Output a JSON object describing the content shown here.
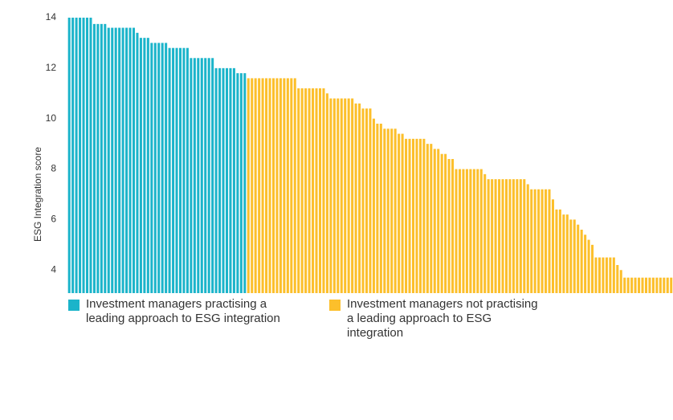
{
  "chart_data": {
    "type": "bar",
    "y_label": "ESG Integration score",
    "ylim": [
      0,
      14
    ],
    "yticks": [
      0,
      2,
      4,
      6,
      8,
      10,
      12,
      14
    ],
    "series": [
      {
        "name": "Investment managers practising a leading approach to ESG integration",
        "color": "#1bb4ca",
        "values": [
          14,
          14,
          14,
          14,
          14,
          14,
          14,
          13.75,
          13.75,
          13.75,
          13.75,
          13.6,
          13.6,
          13.6,
          13.6,
          13.6,
          13.6,
          13.6,
          13.6,
          13.4,
          13.2,
          13.2,
          13.2,
          13,
          13,
          13,
          13,
          13,
          12.8,
          12.8,
          12.8,
          12.8,
          12.8,
          12.8,
          12.4,
          12.4,
          12.4,
          12.4,
          12.4,
          12.4,
          12.4,
          12,
          12,
          12,
          12,
          12,
          12,
          11.8,
          11.8,
          11.8
        ]
      },
      {
        "name": "Investment managers not practising a leading approach to ESG integration",
        "color": "#fcbf2b",
        "values": [
          11.6,
          11.6,
          11.6,
          11.6,
          11.6,
          11.6,
          11.6,
          11.6,
          11.6,
          11.6,
          11.6,
          11.6,
          11.6,
          11.6,
          11.2,
          11.2,
          11.2,
          11.2,
          11.2,
          11.2,
          11.2,
          11.2,
          11,
          10.8,
          10.8,
          10.8,
          10.8,
          10.8,
          10.8,
          10.8,
          10.6,
          10.6,
          10.4,
          10.4,
          10.4,
          10,
          9.8,
          9.8,
          9.6,
          9.6,
          9.6,
          9.6,
          9.4,
          9.4,
          9.2,
          9.2,
          9.2,
          9.2,
          9.2,
          9.2,
          9,
          9,
          8.8,
          8.8,
          8.6,
          8.6,
          8.4,
          8.4,
          8,
          8,
          8,
          8,
          8,
          8,
          8,
          8,
          7.8,
          7.6,
          7.6,
          7.6,
          7.6,
          7.6,
          7.6,
          7.6,
          7.6,
          7.6,
          7.6,
          7.6,
          7.4,
          7.2,
          7.2,
          7.2,
          7.2,
          7.2,
          7.2,
          6.8,
          6.4,
          6.4,
          6.2,
          6.2,
          6,
          6,
          5.8,
          5.6,
          5.4,
          5.2,
          5,
          4.5,
          4.5,
          4.5,
          4.5,
          4.5,
          4.5,
          4.2,
          4,
          3.7,
          3.7,
          3.7,
          3.7,
          3.7,
          3.7,
          3.7,
          3.7,
          3.7,
          3.7,
          3.7,
          3.7,
          3.7,
          3.7
        ]
      }
    ]
  }
}
